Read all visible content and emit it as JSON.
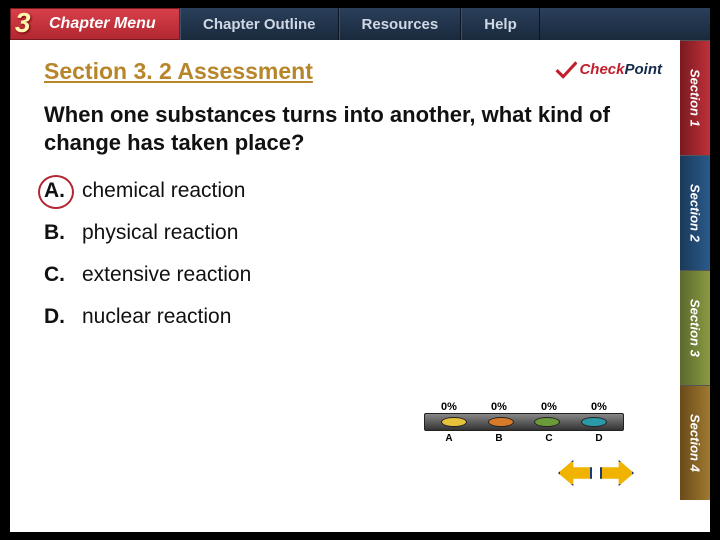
{
  "nav": {
    "chapter_number": "3",
    "chapter_menu": "Chapter Menu",
    "items": [
      "Chapter Outline",
      "Resources",
      "Help"
    ]
  },
  "side_tabs": [
    "Section 1",
    "Section 2",
    "Section 3",
    "Section 4"
  ],
  "section_title": "Section 3. 2 Assessment",
  "checkpoint": {
    "check": "Check",
    "point": "Point"
  },
  "question": "When one substances turns into another, what kind of change has taken place?",
  "answers": [
    {
      "label": "A.",
      "text": "chemical reaction",
      "selected": true
    },
    {
      "label": "B.",
      "text": "physical reaction",
      "selected": false
    },
    {
      "label": "C.",
      "text": "extensive reaction",
      "selected": false
    },
    {
      "label": "D.",
      "text": "nuclear reaction",
      "selected": false
    }
  ],
  "poll": {
    "percent_label": "0%",
    "percents": [
      "0%",
      "0%",
      "0%",
      "0%"
    ],
    "slot_colors": [
      "#e6c23a",
      "#d87a2a",
      "#6a9a3a",
      "#2a9aa8"
    ],
    "labels": [
      "A",
      "B",
      "C",
      "D"
    ]
  },
  "colors": {
    "title_color": "#b7862a",
    "brand_red": "#b22730",
    "nav_bg": "#1a2a3d",
    "arrow_fill": "#f0b400",
    "arrow_border": "#1a3a7a"
  }
}
